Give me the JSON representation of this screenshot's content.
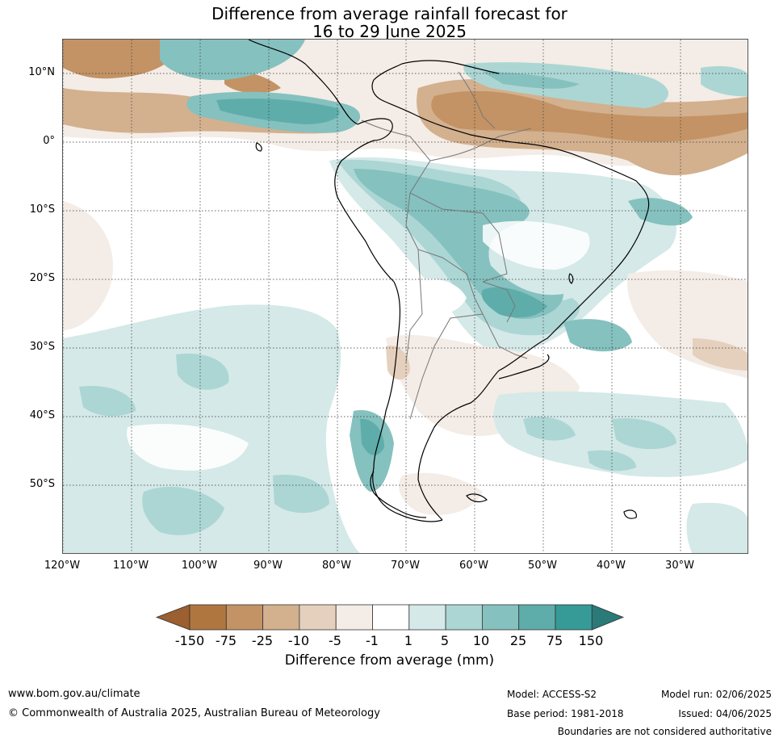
{
  "title": {
    "line1": "Difference from average rainfall forecast for",
    "line2": "16 to 29 June 2025"
  },
  "map": {
    "lat_labels": [
      "10°N",
      "0°",
      "10°S",
      "20°S",
      "30°S",
      "40°S",
      "50°S"
    ],
    "lon_labels": [
      "120°W",
      "110°W",
      "100°W",
      "90°W",
      "80°W",
      "70°W",
      "60°W",
      "50°W",
      "40°W",
      "30°W"
    ]
  },
  "colorbar": {
    "label": "Difference from average (mm)",
    "ticks": [
      "-150",
      "-75",
      "-25",
      "-10",
      "-5",
      "-1",
      "1",
      "5",
      "10",
      "25",
      "75",
      "150"
    ],
    "colors": [
      "#9c5f2f",
      "#af7640",
      "#c39365",
      "#d3b08e",
      "#e5d0bd",
      "#f4ece6",
      "#ffffff",
      "#d4e9e8",
      "#acd6d4",
      "#85c1bf",
      "#5eadaa",
      "#369a97",
      "#2a7a78"
    ]
  },
  "footer": {
    "website": "www.bom.gov.au/climate",
    "copyright": "© Commonwealth of Australia 2025, Australian Bureau of Meteorology",
    "model": "Model: ACCESS-S2",
    "base_period": "Base period: 1981-2018",
    "model_run": "Model run: 02/06/2025",
    "issued": "Issued: 04/06/2025",
    "disclaimer": "Boundaries are not considered authoritative"
  }
}
